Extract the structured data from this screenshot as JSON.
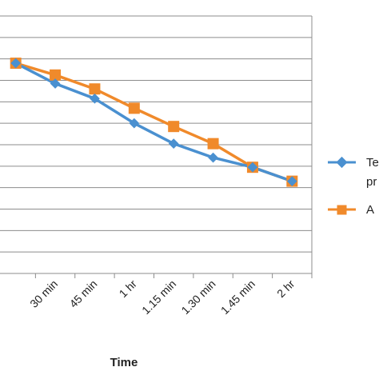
{
  "chart_data": {
    "type": "line",
    "title": "",
    "xlabel": "Time",
    "ylabel": "",
    "categories": [
      "",
      "30 min",
      "45 min",
      "1 hr",
      "1.15 min",
      "1.30 min",
      "1.45 min",
      "2 hr"
    ],
    "series": [
      {
        "name": "Te… p…",
        "color": "#4a90d0",
        "marker": "diamond",
        "values": [
          7.3,
          6.35,
          5.65,
          4.5,
          3.55,
          2.9,
          2.45,
          1.8
        ]
      },
      {
        "name": "A…",
        "color": "#f08a2b",
        "marker": "square",
        "values": [
          7.3,
          6.75,
          6.1,
          5.2,
          4.35,
          3.55,
          2.45,
          1.8
        ]
      }
    ],
    "ylim": [
      -2.5,
      9.5
    ],
    "grid": true,
    "legend_position": "right (partially cropped)",
    "legend_labels_visible": [
      "Te",
      "pr",
      "A"
    ]
  }
}
